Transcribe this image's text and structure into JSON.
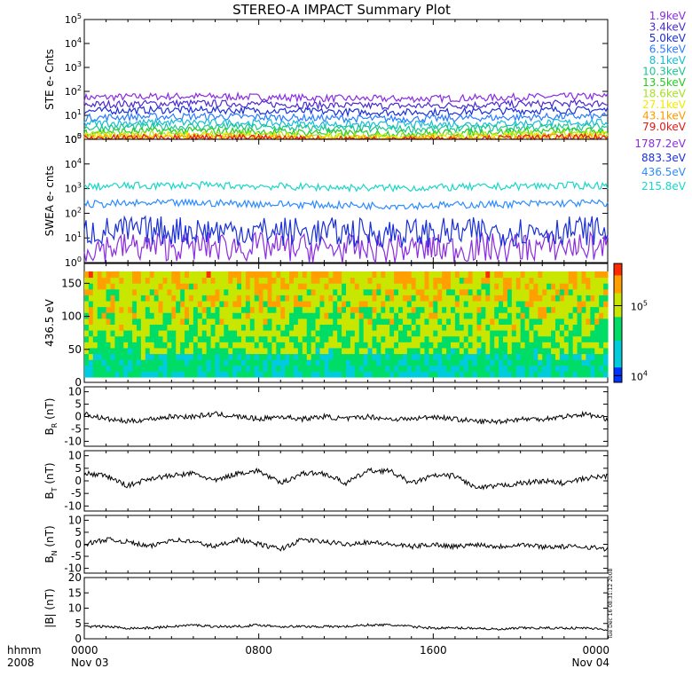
{
  "figure": {
    "title": "STEREO-A IMPACT Summary Plot",
    "time_axis": {
      "unit_label": "hhmm",
      "year_label": "2008",
      "ticks": [
        {
          "value": "0000",
          "date": "Nov 03",
          "hour": 0
        },
        {
          "value": "0800",
          "date": "",
          "hour": 8
        },
        {
          "value": "1600",
          "date": "",
          "hour": 16
        },
        {
          "value": "0000",
          "date": "Nov 04",
          "hour": 24
        }
      ]
    },
    "timestamp": "Tue Dec 16 08:31:12 2008"
  },
  "chart_data": [
    {
      "id": "ste",
      "type": "line",
      "ylabel": "STE e- Cnts",
      "scale": "log",
      "ylim": [
        1,
        100000
      ],
      "ticks": [
        "10^0",
        "10^1",
        "10^2",
        "10^3",
        "10^4",
        "10^5"
      ],
      "x_range_hours": [
        0,
        24
      ],
      "series": [
        {
          "name": "1.9keV",
          "color": "#8a2be2",
          "level": 55
        },
        {
          "name": "3.4keV",
          "color": "#4b2bd0",
          "level": 28
        },
        {
          "name": "5.0keV",
          "color": "#1a2fd8",
          "level": 15
        },
        {
          "name": "6.5keV",
          "color": "#2b7bff",
          "level": 8
        },
        {
          "name": "8.1keV",
          "color": "#14bcd6",
          "level": 4.5
        },
        {
          "name": "10.3keV",
          "color": "#19c78f",
          "level": 3
        },
        {
          "name": "13.5keV",
          "color": "#22cc22",
          "level": 2
        },
        {
          "name": "18.6keV",
          "color": "#a7e021",
          "level": 1.5
        },
        {
          "name": "27.1keV",
          "color": "#eeee00",
          "level": 1.3
        },
        {
          "name": "43.1keV",
          "color": "#ff9a00",
          "level": 1.15
        },
        {
          "name": "79.0keV",
          "color": "#e01818",
          "level": 1.05
        }
      ]
    },
    {
      "id": "swea",
      "type": "line",
      "ylabel": "SWEA e- cnts",
      "scale": "log",
      "ylim": [
        1,
        100000
      ],
      "ticks": [
        "10^0",
        "10^1",
        "10^2",
        "10^3",
        "10^4",
        "10^5"
      ],
      "x_range_hours": [
        0,
        24
      ],
      "series": [
        {
          "name": "1787.2eV",
          "color": "#8a2be2",
          "level": 4
        },
        {
          "name": "883.3eV",
          "color": "#1a2fd8",
          "level": 18
        },
        {
          "name": "436.5eV",
          "color": "#2b8cff",
          "level": 230
        },
        {
          "name": "215.8eV",
          "color": "#19d6c8",
          "level": 1200
        }
      ]
    },
    {
      "id": "pad",
      "type": "heatmap",
      "ylabel": "436.5 eV",
      "ylim": [
        0,
        180
      ],
      "yticks": [
        0,
        50,
        100,
        150
      ],
      "colorbar": {
        "scale": "log",
        "ticks": [
          "10^4",
          "10^5"
        ],
        "range": [
          8000,
          400000
        ]
      },
      "x_range_hours": [
        0,
        24
      ]
    },
    {
      "id": "br",
      "type": "line",
      "ylabel": "B_R (nT)",
      "ylim": [
        -12,
        12
      ],
      "yticks": [
        -10,
        -5,
        0,
        5,
        10
      ],
      "color": "#000000",
      "x_range_hours": [
        0,
        24
      ],
      "x": [
        0,
        1,
        2,
        3,
        4,
        5,
        6,
        7,
        8,
        9,
        10,
        11,
        12,
        13,
        14,
        15,
        16,
        17,
        18,
        19,
        20,
        21,
        22,
        23,
        24
      ],
      "values": [
        1,
        -1,
        -2,
        -1,
        0,
        0,
        1,
        0,
        -1,
        0,
        -1,
        0,
        -1,
        0,
        -1,
        -1,
        0,
        -1,
        -2,
        -2,
        -1,
        -1,
        0,
        1,
        -1
      ]
    },
    {
      "id": "bt",
      "type": "line",
      "ylabel": "B_T (nT)",
      "ylim": [
        -12,
        12
      ],
      "yticks": [
        -10,
        -5,
        0,
        5,
        10
      ],
      "color": "#000000",
      "x_range_hours": [
        0,
        24
      ],
      "x": [
        0,
        1,
        2,
        3,
        4,
        5,
        6,
        7,
        8,
        9,
        10,
        11,
        12,
        13,
        14,
        15,
        16,
        17,
        18,
        19,
        20,
        21,
        22,
        23,
        24
      ],
      "values": [
        3,
        2,
        -2,
        1,
        2,
        3,
        0,
        3,
        4,
        -1,
        3,
        3,
        -1,
        4,
        4,
        -1,
        2,
        2,
        -3,
        -2,
        -1,
        0,
        -1,
        1,
        2
      ]
    },
    {
      "id": "bn",
      "type": "line",
      "ylabel": "B_N (nT)",
      "ylim": [
        -12,
        12
      ],
      "yticks": [
        -10,
        -5,
        0,
        5,
        10
      ],
      "color": "#000000",
      "x_range_hours": [
        0,
        24
      ],
      "x": [
        0,
        1,
        2,
        3,
        4,
        5,
        6,
        7,
        8,
        9,
        10,
        11,
        12,
        13,
        14,
        15,
        16,
        17,
        18,
        19,
        20,
        21,
        22,
        23,
        24
      ],
      "values": [
        0,
        2,
        1,
        -1,
        2,
        1,
        -1,
        2,
        0,
        -2,
        2,
        1,
        0,
        1,
        0,
        -1,
        0,
        -1,
        0,
        -1,
        0,
        -1,
        -1,
        -1,
        -2
      ]
    },
    {
      "id": "bmag",
      "type": "line",
      "ylabel": "|B| (nT)",
      "ylim": [
        0,
        20
      ],
      "yticks": [
        0,
        5,
        10,
        15,
        20
      ],
      "color": "#000000",
      "x_range_hours": [
        0,
        24
      ],
      "x": [
        0,
        1,
        2,
        3,
        4,
        5,
        6,
        7,
        8,
        9,
        10,
        11,
        12,
        13,
        14,
        15,
        16,
        17,
        18,
        19,
        20,
        21,
        22,
        23,
        24
      ],
      "values": [
        4,
        4,
        3.5,
        3.5,
        4,
        4.5,
        4,
        4,
        4.5,
        4,
        4,
        4,
        4,
        4.5,
        4.5,
        4,
        3.5,
        3.5,
        3.5,
        3,
        3.5,
        3.5,
        3.5,
        3.5,
        3
      ]
    }
  ]
}
